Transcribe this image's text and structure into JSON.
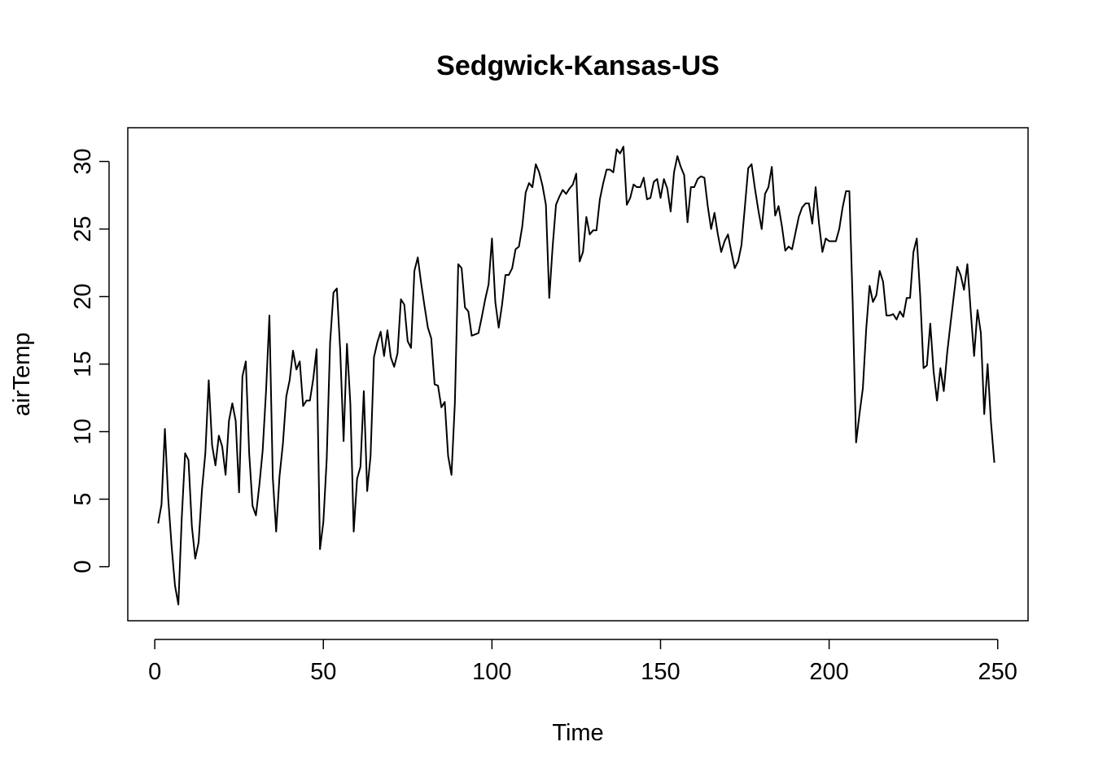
{
  "chart_data": {
    "type": "line",
    "title": "Sedgwick-Kansas-US",
    "xlabel": "Time",
    "ylabel": "airTemp",
    "xlim": [
      -8,
      259
    ],
    "ylim": [
      -4,
      32.5
    ],
    "xticks": [
      0,
      50,
      100,
      150,
      200,
      250
    ],
    "yticks": [
      0,
      5,
      10,
      15,
      20,
      25,
      30
    ],
    "grid": false,
    "legend": "none",
    "series": [
      {
        "values": [
          3.2,
          4.6,
          10.2,
          5.0,
          1.5,
          -1.4,
          -2.8,
          3.6,
          8.4,
          7.9,
          3.0,
          0.6,
          1.8,
          5.7,
          8.4,
          13.8,
          9.0,
          7.5,
          9.7,
          8.9,
          6.8,
          10.8,
          12.1,
          10.8,
          5.5,
          14.1,
          15.2,
          8.4,
          4.5,
          3.8,
          6.0,
          8.6,
          13.0,
          18.6,
          6.6,
          2.6,
          6.7,
          9.1,
          12.6,
          13.8,
          16.0,
          14.6,
          15.2,
          11.9,
          12.3,
          12.3,
          13.9,
          16.1,
          1.3,
          3.3,
          8.0,
          16.6,
          20.3,
          20.6,
          16.0,
          9.3,
          16.5,
          12.1,
          2.6,
          6.5,
          7.4,
          13.0,
          5.6,
          8.2,
          15.5,
          16.6,
          17.4,
          15.6,
          17.5,
          15.5,
          14.8,
          15.8,
          19.8,
          19.4,
          16.7,
          16.2,
          21.9,
          22.9,
          21.0,
          19.3,
          17.7,
          16.9,
          13.5,
          13.4,
          11.8,
          12.2,
          8.2,
          6.8,
          12.1,
          22.4,
          22.1,
          19.2,
          18.9,
          17.1,
          17.2,
          17.3,
          18.5,
          19.8,
          20.9,
          24.3,
          19.6,
          17.7,
          19.4,
          21.6,
          21.6,
          22.1,
          23.5,
          23.7,
          25.2,
          27.7,
          28.4,
          28.1,
          29.8,
          29.2,
          28.2,
          26.8,
          19.9,
          23.7,
          26.8,
          27.4,
          27.9,
          27.6,
          28.0,
          28.3,
          29.1,
          22.6,
          23.3,
          25.9,
          24.6,
          24.9,
          24.9,
          27.2,
          28.4,
          29.4,
          29.4,
          29.2,
          30.9,
          30.6,
          31.1,
          26.8,
          27.3,
          28.3,
          28.1,
          28.1,
          28.8,
          27.2,
          27.3,
          28.5,
          28.7,
          27.3,
          28.7,
          28.0,
          26.3,
          29.2,
          30.4,
          29.6,
          29.0,
          25.5,
          28.1,
          28.1,
          28.7,
          28.9,
          28.8,
          26.7,
          25.0,
          26.2,
          24.6,
          23.3,
          24.1,
          24.6,
          23.3,
          22.1,
          22.6,
          23.8,
          26.6,
          29.5,
          29.8,
          28.0,
          26.4,
          25.0,
          27.6,
          28.1,
          29.6,
          26.0,
          26.7,
          25.2,
          23.4,
          23.7,
          23.5,
          24.7,
          25.9,
          26.6,
          26.9,
          26.9,
          25.4,
          28.1,
          25.4,
          23.3,
          24.3,
          24.1,
          24.1,
          24.1,
          25.0,
          26.6,
          27.8,
          27.8,
          19.4,
          9.2,
          11.3,
          13.2,
          17.6,
          20.8,
          19.6,
          20.1,
          21.9,
          21.1,
          18.6,
          18.6,
          18.7,
          18.3,
          18.9,
          18.5,
          19.9,
          19.9,
          23.3,
          24.3,
          20.1,
          14.7,
          14.9,
          18.0,
          14.4,
          12.3,
          14.7,
          13.0,
          15.8,
          18.0,
          20.1,
          22.2,
          21.6,
          20.5,
          22.4,
          18.9,
          15.6,
          19.0,
          17.3,
          11.3,
          15.0,
          10.7,
          7.7
        ]
      }
    ]
  }
}
